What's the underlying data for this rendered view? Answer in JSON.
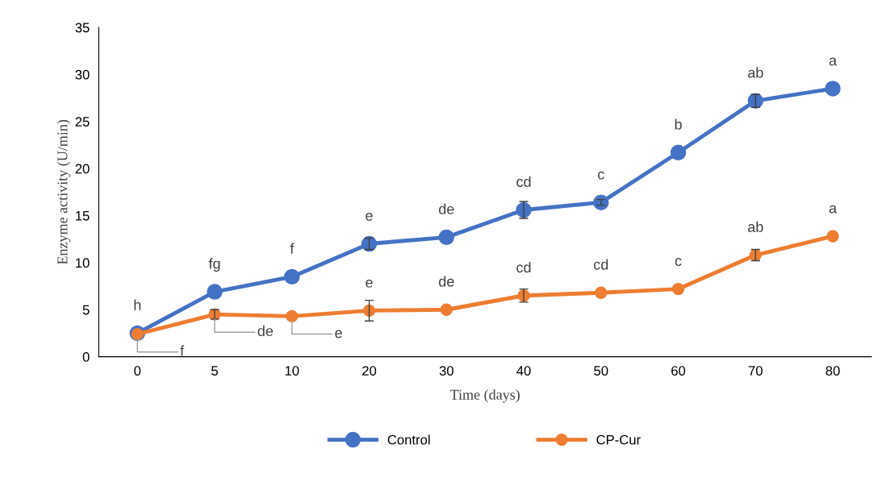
{
  "chart_data": {
    "type": "line",
    "xlabel": "Time (days)",
    "ylabel": "Enzyme activity (U/min)",
    "categories": [
      "0",
      "5",
      "10",
      "20",
      "30",
      "40",
      "50",
      "60",
      "70",
      "80"
    ],
    "ylim": [
      0,
      35
    ],
    "yticks": [
      0,
      5,
      10,
      15,
      20,
      25,
      30,
      35
    ],
    "grid": false,
    "legend": "bottom",
    "marker": "circle",
    "line_style": "solid",
    "series": [
      {
        "name": "Control",
        "color": "#4472c4",
        "values": [
          2.5,
          6.9,
          8.5,
          12.0,
          12.7,
          15.6,
          16.4,
          21.7,
          27.2,
          28.5
        ],
        "errors": [
          null,
          null,
          null,
          0.6,
          null,
          0.9,
          0.3,
          null,
          0.7,
          null
        ]
      },
      {
        "name": "CP-Cur",
        "color": "#ed7d31",
        "values": [
          2.4,
          4.5,
          4.3,
          4.9,
          5.0,
          6.5,
          6.8,
          7.2,
          10.8,
          12.8
        ],
        "errors": [
          null,
          0.5,
          null,
          1.1,
          null,
          0.7,
          null,
          null,
          0.6,
          null
        ]
      }
    ],
    "annotations": [
      {
        "text": "h",
        "x": "0",
        "y": 2.5
      },
      {
        "text": "fg",
        "x": "5",
        "y": 6.9
      },
      {
        "text": "f",
        "x": "10",
        "y": 8.5
      },
      {
        "text": "e",
        "x": "20",
        "y": 12.0
      },
      {
        "text": "de",
        "x": "30",
        "y": 12.7
      },
      {
        "text": "cd",
        "x": "40",
        "y": 15.6
      },
      {
        "text": "c",
        "x": "50",
        "y": 16.4
      },
      {
        "text": "b",
        "x": "60",
        "y": 21.7
      },
      {
        "text": "ab",
        "x": "70",
        "y": 27.2
      },
      {
        "text": "a",
        "x": "80",
        "y": 28.5
      },
      {
        "text": "f",
        "x": "0",
        "y": 2.4
      },
      {
        "text": "de",
        "x": "5",
        "y": 4.5
      },
      {
        "text": "e",
        "x": "10",
        "y": 4.3
      },
      {
        "text": "e",
        "x": "20",
        "y": 4.9
      },
      {
        "text": "de",
        "x": "30",
        "y": 5.0
      },
      {
        "text": "cd",
        "x": "40",
        "y": 6.5
      },
      {
        "text": "cd",
        "x": "50",
        "y": 6.8
      },
      {
        "text": "c",
        "x": "60",
        "y": 7.2
      },
      {
        "text": "ab",
        "x": "70",
        "y": 10.8
      },
      {
        "text": "a",
        "x": "80",
        "y": 12.8
      }
    ]
  }
}
